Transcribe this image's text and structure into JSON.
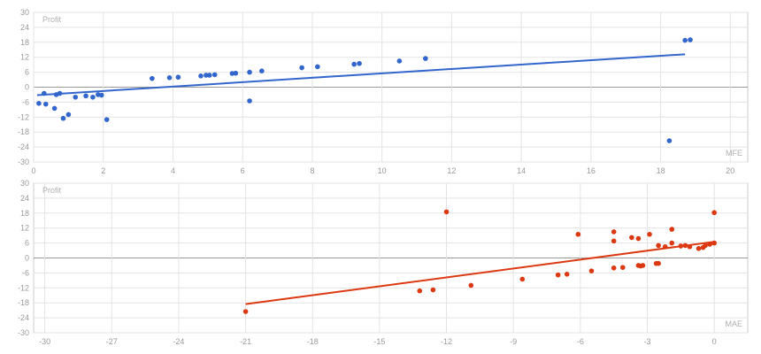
{
  "chart_data": [
    {
      "type": "scatter",
      "ylabel": "Profit",
      "xlabel": "MFE",
      "xlim": [
        0,
        20.5
      ],
      "ylim": [
        -30,
        30
      ],
      "xticks": [
        0,
        2,
        4,
        6,
        8,
        10,
        12,
        14,
        16,
        18,
        20
      ],
      "yticks": [
        30,
        24,
        18,
        12,
        6,
        0,
        -6,
        -12,
        -18,
        -24,
        -30
      ],
      "grid": true,
      "color": "#3366cc",
      "trendline": {
        "x": [
          0.1,
          18.7
        ],
        "y": [
          -3.2,
          13.2
        ]
      },
      "points": [
        {
          "x": 0.15,
          "y": -6.5
        },
        {
          "x": 0.3,
          "y": -2.5
        },
        {
          "x": 0.35,
          "y": -6.8
        },
        {
          "x": 0.6,
          "y": -8.5
        },
        {
          "x": 0.65,
          "y": -3.0
        },
        {
          "x": 0.75,
          "y": -2.5
        },
        {
          "x": 0.85,
          "y": -12.5
        },
        {
          "x": 1.0,
          "y": -11.0
        },
        {
          "x": 1.2,
          "y": -4.0
        },
        {
          "x": 1.5,
          "y": -3.5
        },
        {
          "x": 1.7,
          "y": -4.0
        },
        {
          "x": 1.85,
          "y": -3.0
        },
        {
          "x": 1.95,
          "y": -3.2
        },
        {
          "x": 2.1,
          "y": -13.0
        },
        {
          "x": 3.4,
          "y": 3.5
        },
        {
          "x": 3.9,
          "y": 3.8
        },
        {
          "x": 4.15,
          "y": 4.0
        },
        {
          "x": 4.8,
          "y": 4.5
        },
        {
          "x": 4.95,
          "y": 4.8
        },
        {
          "x": 5.05,
          "y": 4.8
        },
        {
          "x": 5.2,
          "y": 5.0
        },
        {
          "x": 5.7,
          "y": 5.5
        },
        {
          "x": 5.8,
          "y": 5.6
        },
        {
          "x": 6.2,
          "y": 6.0
        },
        {
          "x": 6.55,
          "y": 6.5
        },
        {
          "x": 6.2,
          "y": -5.5
        },
        {
          "x": 7.7,
          "y": 7.8
        },
        {
          "x": 8.15,
          "y": 8.2
        },
        {
          "x": 9.2,
          "y": 9.2
        },
        {
          "x": 9.35,
          "y": 9.5
        },
        {
          "x": 10.5,
          "y": 10.5
        },
        {
          "x": 11.25,
          "y": 11.5
        },
        {
          "x": 18.25,
          "y": -21.5
        },
        {
          "x": 18.7,
          "y": 18.8
        },
        {
          "x": 18.85,
          "y": 19.0
        }
      ]
    },
    {
      "type": "scatter",
      "ylabel": "Profit",
      "xlabel": "MAE",
      "xlim": [
        -30.5,
        1.5
      ],
      "ylim": [
        -30,
        30
      ],
      "xticks": [
        -30,
        -27,
        -24,
        -21,
        -18,
        -15,
        -12,
        -9,
        -6,
        -3,
        0
      ],
      "yticks": [
        30,
        24,
        18,
        12,
        6,
        0,
        -6,
        -12,
        -18,
        -24,
        -30
      ],
      "grid": true,
      "color": "#dc3912",
      "trendline": {
        "x": [
          -21.0,
          0.0
        ],
        "y": [
          -18.5,
          6.5
        ]
      },
      "points": [
        {
          "x": -21.0,
          "y": -21.5
        },
        {
          "x": -13.2,
          "y": -13.2
        },
        {
          "x": -12.6,
          "y": -12.8
        },
        {
          "x": -12.0,
          "y": 18.5
        },
        {
          "x": -10.9,
          "y": -11.0
        },
        {
          "x": -8.6,
          "y": -8.5
        },
        {
          "x": -7.0,
          "y": -6.8
        },
        {
          "x": -6.6,
          "y": -6.5
        },
        {
          "x": -6.1,
          "y": 9.5
        },
        {
          "x": -5.5,
          "y": -5.2
        },
        {
          "x": -4.5,
          "y": 10.5
        },
        {
          "x": -4.5,
          "y": 6.8
        },
        {
          "x": -4.5,
          "y": -4.0
        },
        {
          "x": -4.1,
          "y": -3.8
        },
        {
          "x": -3.7,
          "y": 8.2
        },
        {
          "x": -3.4,
          "y": 7.8
        },
        {
          "x": -3.4,
          "y": -3.0
        },
        {
          "x": -3.3,
          "y": -3.2
        },
        {
          "x": -3.2,
          "y": -3.0
        },
        {
          "x": -2.9,
          "y": 9.5
        },
        {
          "x": -2.6,
          "y": -2.2
        },
        {
          "x": -2.5,
          "y": -2.2
        },
        {
          "x": -2.5,
          "y": 5.0
        },
        {
          "x": -2.2,
          "y": 4.5
        },
        {
          "x": -1.9,
          "y": 11.5
        },
        {
          "x": -1.9,
          "y": 6.0
        },
        {
          "x": -1.5,
          "y": 4.8
        },
        {
          "x": -1.3,
          "y": 5.0
        },
        {
          "x": -1.1,
          "y": 4.5
        },
        {
          "x": -0.7,
          "y": 3.8
        },
        {
          "x": -0.5,
          "y": 4.2
        },
        {
          "x": -0.4,
          "y": 5.0
        },
        {
          "x": -0.2,
          "y": 5.5
        },
        {
          "x": 0.0,
          "y": 18.2
        },
        {
          "x": 0.0,
          "y": 6.0
        }
      ]
    }
  ]
}
